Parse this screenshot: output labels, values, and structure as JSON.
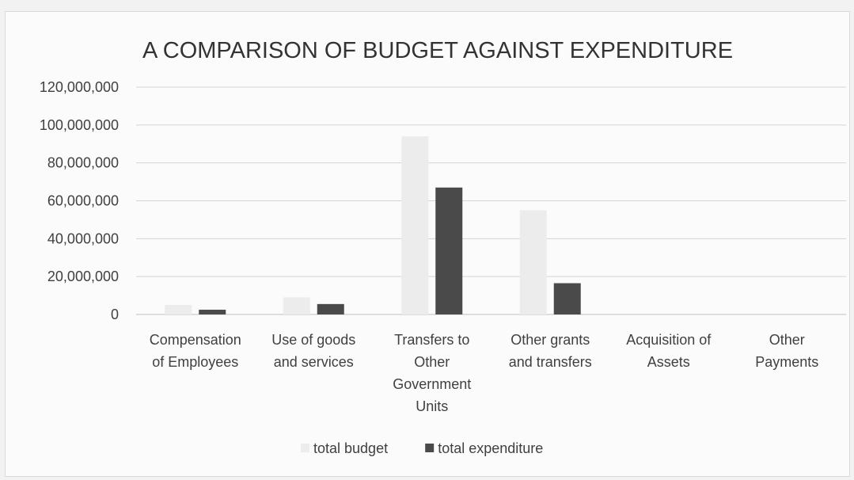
{
  "chart_data": {
    "type": "bar",
    "title": "A COMPARISON OF BUDGET AGAINST EXPENDITURE",
    "xlabel": "",
    "ylabel": "",
    "ylim": [
      0,
      120000000
    ],
    "yticks": [
      "120,000,000",
      "100,000,000",
      "80,000,000",
      "60,000,000",
      "40,000,000",
      "20,000,000",
      "0"
    ],
    "ytick_values": [
      120000000,
      100000000,
      80000000,
      60000000,
      40000000,
      20000000,
      0
    ],
    "categories": [
      [
        "Compensation",
        "of Employees"
      ],
      [
        "Use of goods",
        "and services"
      ],
      [
        "Transfers to",
        "Other",
        "Government",
        "Units"
      ],
      [
        "Other grants",
        "and transfers"
      ],
      [
        "Acquisition of",
        "Assets"
      ],
      [
        "Other",
        "Payments"
      ]
    ],
    "series": [
      {
        "name": "total budget",
        "color": "#ececec",
        "values": [
          5000000,
          9000000,
          94000000,
          55000000,
          0,
          0
        ]
      },
      {
        "name": "total expenditure",
        "color": "#4a4a4a",
        "values": [
          2500000,
          5500000,
          67000000,
          16500000,
          0,
          0
        ]
      }
    ],
    "grid": true,
    "legend_position": "bottom"
  }
}
